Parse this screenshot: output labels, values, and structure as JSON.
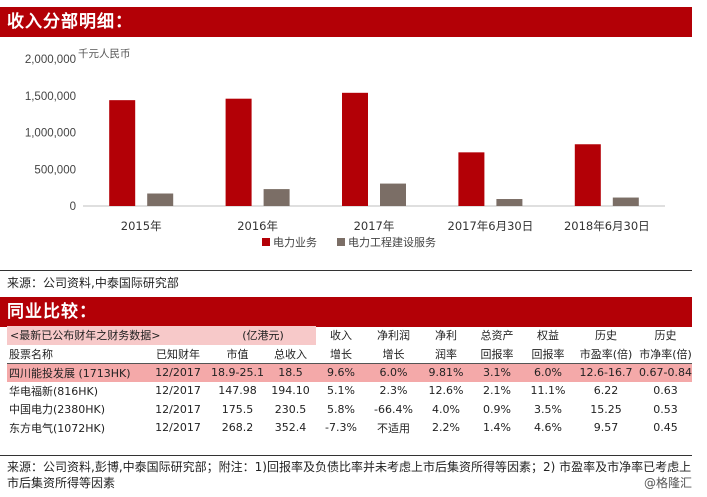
{
  "section1": {
    "title": "收入分部明细："
  },
  "chart_data": {
    "type": "bar",
    "categories": [
      "2015年",
      "2016年",
      "2017年",
      "2017年6月30日",
      "2018年6月30日"
    ],
    "series": [
      {
        "name": "电力业务",
        "color": "#b30006",
        "values": [
          1440000,
          1460000,
          1540000,
          730000,
          840000
        ]
      },
      {
        "name": "电力工程建设服务",
        "color": "#7b6e66",
        "values": [
          170000,
          230000,
          305000,
          95000,
          115000
        ]
      }
    ],
    "ylabel": "千元人民币",
    "ylim": [
      0,
      2000000
    ],
    "yticks": [
      "0",
      "500,000",
      "1,000,000",
      "1,500,000",
      "2,000,000"
    ],
    "ytick_values": [
      0,
      500000,
      1000000,
      1500000,
      2000000
    ],
    "grid": false,
    "legend_position": "bottom"
  },
  "source1": "来源：公司资料,中泰国际研究部",
  "section2": {
    "title": "同业比较："
  },
  "table": {
    "header1": [
      "<最新已公布财年之财务数据>",
      "(亿港元)",
      "收入",
      "净利润",
      "净利",
      "总资产",
      "权益",
      "历史",
      "历史"
    ],
    "header2": [
      "股票名称",
      "已知财年",
      "市值",
      "总收入",
      "增长",
      "增长",
      "润率",
      "回报率",
      "回报率",
      "市盈率(倍)",
      "市净率(倍)"
    ],
    "rows": [
      [
        "四川能投发展 (1713HK)",
        "12/2017",
        "18.9-25.1",
        "18.5",
        "9.6%",
        "6.0%",
        "9.81%",
        "3.1%",
        "6.0%",
        "12.6-16.7",
        "0.67-0.84"
      ],
      [
        "华电福新(816HK)",
        "12/2017",
        "147.98",
        "194.10",
        "5.1%",
        "2.3%",
        "12.6%",
        "2.1%",
        "11.1%",
        "6.22",
        "0.63"
      ],
      [
        "中国电力(2380HK)",
        "12/2017",
        "175.5",
        "230.5",
        "5.8%",
        "-66.4%",
        "4.0%",
        "0.9%",
        "3.5%",
        "15.25",
        "0.53"
      ],
      [
        "东方电气(1072HK)",
        "12/2017",
        "268.2",
        "352.4",
        "-7.3%",
        "不适用",
        "2.2%",
        "1.4%",
        "4.6%",
        "9.57",
        "0.45"
      ]
    ]
  },
  "source2": "来源：公司资料,彭博,中泰国际研究部；附注：1)回报率及负债比率并未考虑上市后集资所得等因素；2) 市盈率及市净率已考虑上市后集资所得等因素",
  "watermark": "@格隆汇"
}
